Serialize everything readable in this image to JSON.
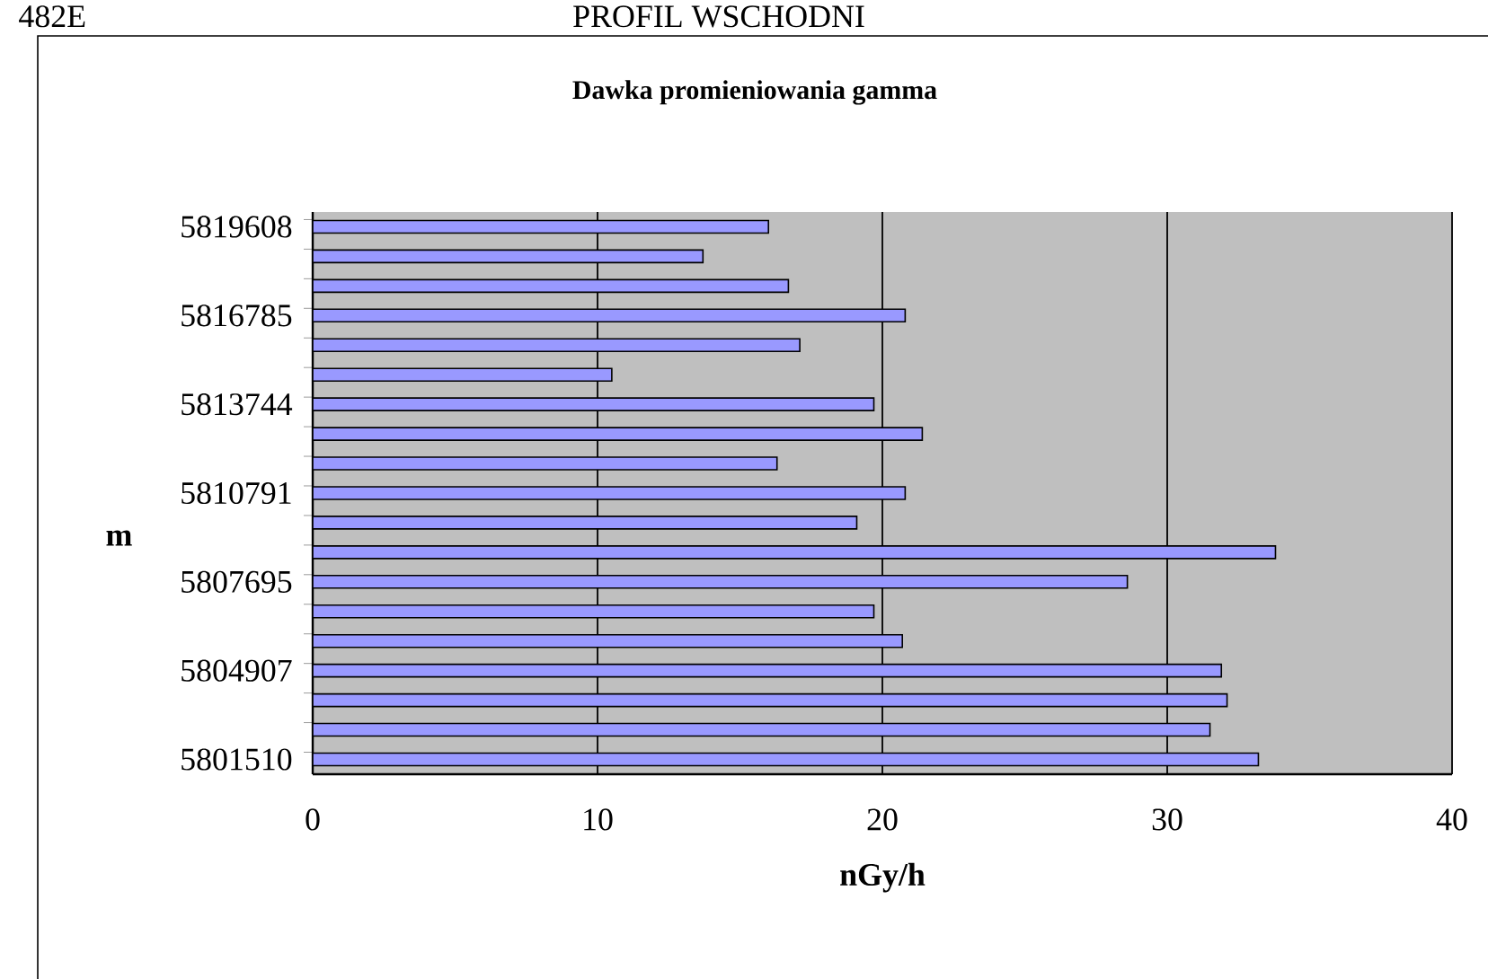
{
  "chart_data": {
    "type": "bar",
    "orientation": "horizontal",
    "title": "Dawka promieniowania gamma",
    "xlabel": "nGy/h",
    "ylabel": "m",
    "annotations": [
      "482E",
      "PROFIL WSCHODNI"
    ],
    "categories": [
      "5819608",
      null,
      null,
      "5816785",
      null,
      null,
      "5813744",
      null,
      null,
      "5810791",
      null,
      null,
      "5807695",
      null,
      null,
      "5804907",
      null,
      null,
      "5801510"
    ],
    "values": [
      16.0,
      13.7,
      16.7,
      20.8,
      17.1,
      10.5,
      19.7,
      21.4,
      16.3,
      20.8,
      19.1,
      33.8,
      28.6,
      19.7,
      20.7,
      31.9,
      32.1,
      31.5,
      33.2
    ],
    "color": "#9999ff",
    "xlim": [
      0,
      40
    ],
    "xticks": [
      0,
      10,
      20,
      30,
      40
    ],
    "grid": "x"
  }
}
